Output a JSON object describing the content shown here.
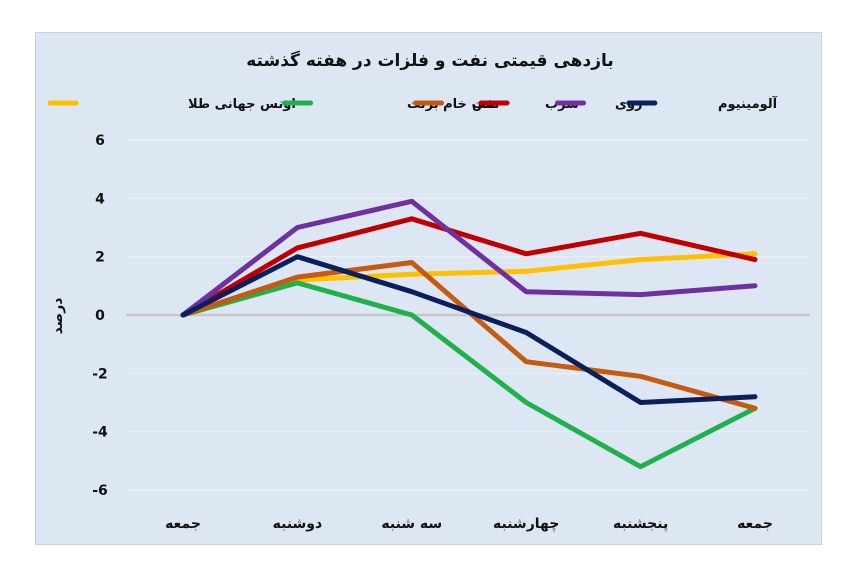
{
  "chart_data": {
    "type": "line",
    "title": "بازدهی قیمتی نفت و فلزات در هفته گذشته",
    "ylabel": "درصد",
    "xlabel": "",
    "categories": [
      "جمعه",
      "دوشنبه",
      "سه شنبه",
      "چهارشنبه",
      "پنجشنبه",
      "جمعه"
    ],
    "y_ticks": [
      6,
      4,
      2,
      0,
      -2,
      -4,
      -6
    ],
    "y_tick_labels": [
      "6",
      "4",
      "2",
      "0",
      "-2",
      "-4",
      "-6"
    ],
    "ylim": [
      -6,
      6
    ],
    "grid": true,
    "legend_position": "top",
    "series": [
      {
        "name": "اونس جهانی طلا",
        "color": "#ffc000",
        "values": [
          0,
          1.2,
          1.4,
          1.5,
          1.9,
          2.1
        ]
      },
      {
        "name": "نفت خام برنت",
        "color": "#21b14c",
        "values": [
          0,
          1.1,
          0,
          -3,
          -5.2,
          -3.2
        ]
      },
      {
        "name": "مس",
        "color": "#c55a11",
        "values": [
          0,
          1.3,
          1.8,
          -1.6,
          -2.1,
          -3.2
        ]
      },
      {
        "name": "سرب",
        "color": "#c00000",
        "values": [
          0,
          2.3,
          3.3,
          2.1,
          2.8,
          1.9
        ]
      },
      {
        "name": "روی",
        "color": "#7030a0",
        "values": [
          0,
          3,
          3.9,
          0.8,
          0.7,
          1
        ]
      },
      {
        "name": "آلومینیوم",
        "color": "#0b1f5c",
        "values": [
          0,
          2,
          0.8,
          -0.6,
          -3,
          -2.8
        ]
      }
    ]
  }
}
